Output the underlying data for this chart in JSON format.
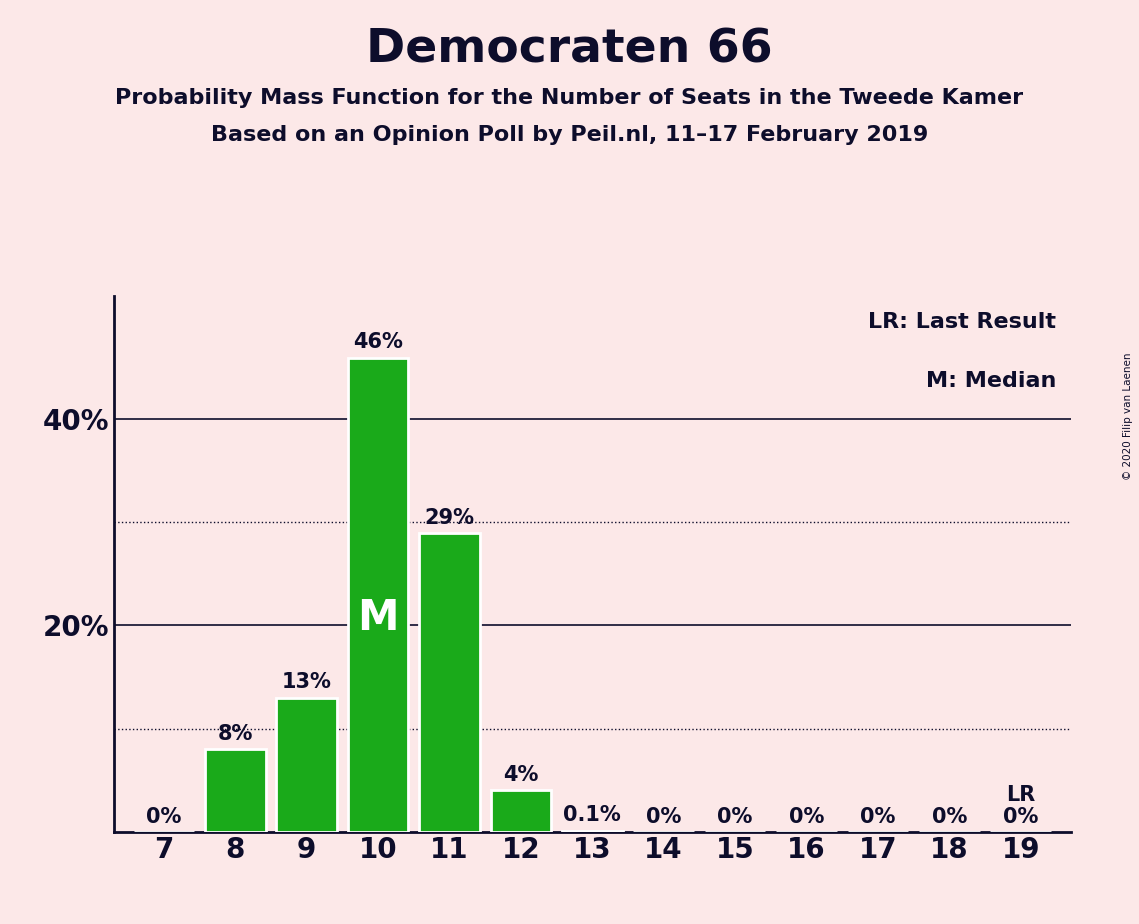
{
  "title": "Democraten 66",
  "subtitle1": "Probability Mass Function for the Number of Seats in the Tweede Kamer",
  "subtitle2": "Based on an Opinion Poll by Peil.nl, 11–17 February 2019",
  "copyright": "© 2020 Filip van Laenen",
  "seats": [
    7,
    8,
    9,
    10,
    11,
    12,
    13,
    14,
    15,
    16,
    17,
    18,
    19
  ],
  "probabilities": [
    0.0,
    0.08,
    0.13,
    0.46,
    0.29,
    0.04,
    0.001,
    0.0,
    0.0,
    0.0,
    0.0,
    0.0,
    0.0
  ],
  "bar_labels": [
    "0%",
    "8%",
    "13%",
    "46%",
    "29%",
    "4%",
    "0.1%",
    "0%",
    "0%",
    "0%",
    "0%",
    "0%",
    "0%"
  ],
  "bar_color": "#1aaa1a",
  "bar_edge_color": "#ffffff",
  "median_seat": 10,
  "median_label": "M",
  "lr_seat": 19,
  "lr_label": "LR",
  "legend_lr": "LR: Last Result",
  "legend_m": "M: Median",
  "background_color": "#fce8e8",
  "text_color": "#0d0d2b",
  "title_fontsize": 34,
  "subtitle_fontsize": 16,
  "ylabel_fontsize": 20,
  "xlabel_fontsize": 20,
  "bar_label_fontsize": 15,
  "solid_yticks": [
    0.2,
    0.4
  ],
  "dotted_yticks": [
    0.1,
    0.3
  ],
  "ylim": [
    0,
    0.52
  ]
}
